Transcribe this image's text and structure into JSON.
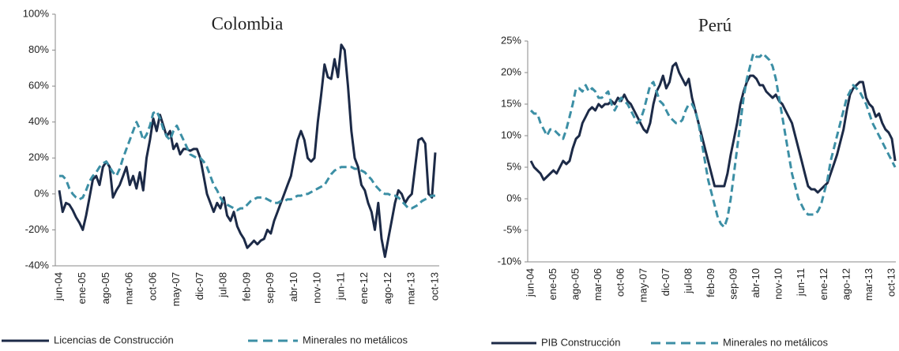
{
  "chart_data": [
    {
      "type": "line",
      "title": "Colombia",
      "categories": [
        "jun-04",
        null,
        null,
        null,
        null,
        null,
        null,
        "ene-05",
        null,
        null,
        null,
        null,
        null,
        null,
        "ago-05",
        null,
        null,
        null,
        null,
        null,
        null,
        "mar-06",
        null,
        null,
        null,
        null,
        null,
        null,
        "oct-06",
        null,
        null,
        null,
        null,
        null,
        null,
        "may-07",
        null,
        null,
        null,
        null,
        null,
        null,
        "dic-07",
        null,
        null,
        null,
        null,
        null,
        null,
        "jul-08",
        null,
        null,
        null,
        null,
        null,
        null,
        "feb-09",
        null,
        null,
        null,
        null,
        null,
        null,
        "sep-09",
        null,
        null,
        null,
        null,
        null,
        null,
        "abr-10",
        null,
        null,
        null,
        null,
        null,
        null,
        "nov-10",
        null,
        null,
        null,
        null,
        null,
        null,
        "jun-11",
        null,
        null,
        null,
        null,
        null,
        null,
        "ene-12",
        null,
        null,
        null,
        null,
        null,
        null,
        "ago-12",
        null,
        null,
        null,
        null,
        null,
        null,
        "mar-13",
        null,
        null,
        null,
        null,
        null,
        null,
        "oct-13"
      ],
      "series": [
        {
          "name": "Licencias de Construcción",
          "color": "#1c2a47",
          "dashed": false,
          "values": [
            2,
            -10,
            -5,
            -6,
            -9,
            -13,
            -16,
            -20,
            -12,
            -2,
            8,
            10,
            5,
            15,
            18,
            15,
            -2,
            2,
            5,
            10,
            15,
            5,
            10,
            3,
            12,
            2,
            20,
            30,
            42,
            35,
            44,
            38,
            32,
            35,
            25,
            28,
            22,
            25,
            25,
            24,
            25,
            25,
            20,
            10,
            0,
            -5,
            -10,
            -5,
            -8,
            -2,
            -12,
            -15,
            -10,
            -18,
            -22,
            -25,
            -30,
            -28,
            -26,
            -28,
            -26,
            -25,
            -20,
            -22,
            -15,
            -10,
            -5,
            0,
            5,
            10,
            20,
            30,
            35,
            30,
            20,
            18,
            20,
            40,
            55,
            72,
            65,
            64,
            75,
            65,
            83,
            80,
            60,
            35,
            20,
            15,
            5,
            2,
            -5,
            -10,
            -20,
            -5,
            -25,
            -35,
            -25,
            -15,
            -5,
            2,
            0,
            -5,
            -2,
            0,
            15,
            30,
            31,
            28,
            0,
            -2,
            23
          ]
        },
        {
          "name": "Minerales no metálicos",
          "color": "#3c8fa5",
          "dashed": true,
          "values": [
            10,
            10,
            8,
            3,
            0,
            -2,
            -3,
            -2,
            2,
            7,
            10,
            12,
            15,
            17,
            18,
            15,
            12,
            10,
            14,
            20,
            25,
            30,
            35,
            40,
            36,
            30,
            33,
            38,
            45,
            46,
            42,
            36,
            32,
            30,
            35,
            38,
            34,
            30,
            26,
            22,
            21,
            20,
            20,
            18,
            15,
            10,
            5,
            2,
            -2,
            -5,
            -6,
            -7,
            -8,
            -9,
            -8,
            -8,
            -6,
            -4,
            -3,
            -2,
            -2,
            -2,
            -3,
            -4,
            -5,
            -5,
            -4,
            -4,
            -3,
            -3,
            -2,
            -1,
            -1,
            0,
            0,
            1,
            2,
            3,
            4,
            5,
            8,
            11,
            13,
            14,
            15,
            15,
            15,
            15,
            14,
            14,
            13,
            12,
            10,
            8,
            5,
            3,
            1,
            0,
            0,
            -1,
            -1,
            -2,
            -4,
            -6,
            -8,
            -8,
            -7,
            -6,
            -4,
            -3,
            -2,
            -1,
            -1
          ]
        }
      ],
      "ylim": [
        -40,
        100
      ],
      "yticks": [
        {
          "value": -40,
          "label": "-40%"
        },
        {
          "value": -20,
          "label": "-20%"
        },
        {
          "value": 0,
          "label": "0%"
        },
        {
          "value": 20,
          "label": "20%"
        },
        {
          "value": 40,
          "label": "40%"
        },
        {
          "value": 60,
          "label": "60%"
        },
        {
          "value": 80,
          "label": "80%"
        },
        {
          "value": 100,
          "label": "100%"
        }
      ],
      "grid": false,
      "legend": "bottom"
    },
    {
      "type": "line",
      "title": "Perú",
      "categories": [
        "jun-04",
        null,
        null,
        null,
        null,
        null,
        null,
        "ene-05",
        null,
        null,
        null,
        null,
        null,
        null,
        "ago-05",
        null,
        null,
        null,
        null,
        null,
        null,
        "mar-06",
        null,
        null,
        null,
        null,
        null,
        null,
        "oct-06",
        null,
        null,
        null,
        null,
        null,
        null,
        "may-07",
        null,
        null,
        null,
        null,
        null,
        null,
        "dic-07",
        null,
        null,
        null,
        null,
        null,
        null,
        "jul-08",
        null,
        null,
        null,
        null,
        null,
        null,
        "feb-09",
        null,
        null,
        null,
        null,
        null,
        null,
        "sep-09",
        null,
        null,
        null,
        null,
        null,
        null,
        "abr-10",
        null,
        null,
        null,
        null,
        null,
        null,
        "nov-10",
        null,
        null,
        null,
        null,
        null,
        null,
        "jun-11",
        null,
        null,
        null,
        null,
        null,
        null,
        "ene-12",
        null,
        null,
        null,
        null,
        null,
        null,
        "ago-12",
        null,
        null,
        null,
        null,
        null,
        null,
        "mar-13",
        null,
        null,
        null,
        null,
        null,
        null,
        "oct-13",
        null
      ],
      "series": [
        {
          "name": "PIB Construcción",
          "color": "#1c2a47",
          "dashed": false,
          "values": [
            6,
            5,
            4.5,
            4,
            3,
            3.5,
            4,
            4.5,
            4,
            5,
            6,
            5.5,
            6,
            8,
            9.5,
            10,
            12,
            13,
            14,
            14.5,
            14,
            15,
            14.5,
            15,
            15,
            15.5,
            15,
            16,
            15.5,
            16.5,
            15.5,
            15,
            14,
            13,
            12,
            11,
            10.5,
            12,
            15,
            17,
            18,
            19.5,
            17.5,
            18.5,
            21,
            21.5,
            20,
            19,
            18,
            19,
            16,
            14,
            12,
            10,
            8,
            6,
            4,
            2,
            2,
            2,
            2,
            4,
            7,
            9.5,
            12,
            15,
            17,
            18.5,
            19.5,
            19.5,
            19,
            18,
            18,
            17,
            16.5,
            16,
            16.5,
            15.5,
            15,
            14,
            13,
            12,
            10,
            8,
            6,
            4,
            2,
            1.5,
            1.5,
            1,
            1.5,
            2,
            2.5,
            4,
            5.5,
            7,
            9,
            11,
            14,
            16.5,
            17.5,
            18,
            18.5,
            18.5,
            16,
            15,
            14.5,
            13,
            13.5,
            12,
            11,
            10.5,
            9.5,
            6
          ]
        },
        {
          "name": "Minerales no metálicos",
          "color": "#3c8fa5",
          "dashed": true,
          "values": [
            14,
            13.5,
            13.5,
            12,
            11,
            10,
            11,
            11,
            10.5,
            10,
            9.5,
            11,
            13,
            15,
            17.5,
            17.5,
            17,
            18,
            17,
            17.5,
            17,
            16,
            16,
            16.5,
            17,
            15,
            14,
            15,
            16,
            15.5,
            15,
            14,
            13,
            12,
            12.5,
            14,
            16,
            18,
            18.5,
            17,
            15.5,
            15,
            14,
            13,
            12.5,
            12,
            12,
            12.5,
            14,
            15,
            15,
            14,
            12,
            9,
            6,
            3,
            1,
            -1,
            -3,
            -4,
            -4.5,
            -3,
            0,
            4,
            8,
            12,
            16,
            19,
            21,
            23,
            22.5,
            22.5,
            23,
            22.5,
            22,
            21,
            19,
            16,
            13,
            10,
            7,
            4,
            2,
            0,
            -1,
            -2,
            -2.5,
            -2.5,
            -2.5,
            -2,
            -1,
            1,
            3,
            6,
            8,
            10,
            12,
            14,
            16,
            17,
            18,
            17.5,
            17,
            16,
            15,
            13.5,
            12,
            11,
            10,
            9,
            8,
            7,
            6,
            5
          ]
        }
      ],
      "ylim": [
        -10,
        25
      ],
      "yticks": [
        {
          "value": -10,
          "label": "-10%"
        },
        {
          "value": -5,
          "label": "-5%"
        },
        {
          "value": 0,
          "label": "0%"
        },
        {
          "value": 5,
          "label": "5%"
        },
        {
          "value": 10,
          "label": "10%"
        },
        {
          "value": 15,
          "label": "15%"
        },
        {
          "value": 20,
          "label": "20%"
        },
        {
          "value": 25,
          "label": "25%"
        }
      ],
      "grid": false,
      "legend": "bottom"
    }
  ]
}
